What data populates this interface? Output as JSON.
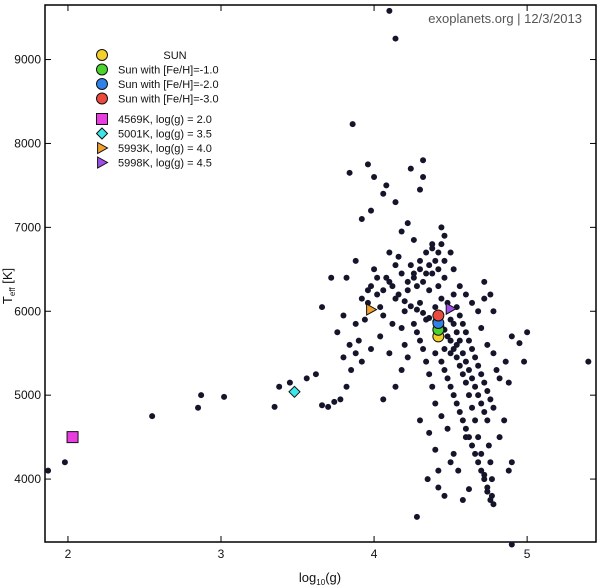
{
  "credit": "exoplanets.org | 12/3/2013",
  "colors": {
    "points": "#14142b",
    "sun": "#f5d02a",
    "feh_1": "#4cd42e",
    "feh_2": "#2f82e8",
    "feh_3": "#ec4a3c",
    "model_4569": "#e83ee0",
    "model_5001": "#3ee6e6",
    "model_5993": "#f2a02a",
    "model_5998": "#a04ee8"
  },
  "chart_data": {
    "type": "scatter",
    "xlabel": "log10(g)",
    "ylabel": "Teff [K]",
    "xlim": [
      1.85,
      5.45
    ],
    "ylim": [
      3250,
      9650
    ],
    "xticks": [
      2,
      3,
      4,
      5
    ],
    "yticks": [
      4000,
      5000,
      6000,
      7000,
      8000,
      9000
    ],
    "grid": false,
    "legend_position": "top-left",
    "legend": [
      {
        "label": "SUN",
        "marker": "circle",
        "color": "#f5d02a"
      },
      {
        "label": "Sun with [Fe/H]=-1.0",
        "marker": "circle",
        "color": "#4cd42e"
      },
      {
        "label": "Sun with [Fe/H]=-2.0",
        "marker": "circle",
        "color": "#2f82e8"
      },
      {
        "label": "Sun with [Fe/H]=-3.0",
        "marker": "circle",
        "color": "#ec4a3c"
      },
      {
        "label": "4569K, log(g) = 2.0",
        "marker": "square",
        "color": "#e83ee0"
      },
      {
        "label": "5001K, log(g) = 3.5",
        "marker": "diamond",
        "color": "#3ee6e6"
      },
      {
        "label": "5993K, log(g) = 4.0",
        "marker": "triangle-right",
        "color": "#f2a02a"
      },
      {
        "label": "5998K, log(g) = 4.5",
        "marker": "triangle-right",
        "color": "#a04ee8"
      }
    ],
    "highlighted": [
      {
        "name": "SUN",
        "marker": "circle",
        "color": "#f5d02a",
        "x": 4.42,
        "y": 5700
      },
      {
        "name": "Sun with [Fe/H]=-1.0",
        "marker": "circle",
        "color": "#4cd42e",
        "x": 4.42,
        "y": 5780
      },
      {
        "name": "Sun with [Fe/H]=-2.0",
        "marker": "circle",
        "color": "#2f82e8",
        "x": 4.42,
        "y": 5860
      },
      {
        "name": "Sun with [Fe/H]=-3.0",
        "marker": "circle",
        "color": "#ec4a3c",
        "x": 4.42,
        "y": 5950
      },
      {
        "name": "4569K, log(g) = 2.0",
        "marker": "square",
        "color": "#e83ee0",
        "x": 2.03,
        "y": 4500
      },
      {
        "name": "5001K, log(g) = 3.5",
        "marker": "diamond",
        "color": "#3ee6e6",
        "x": 3.48,
        "y": 5040
      },
      {
        "name": "5993K, log(g) = 4.0",
        "marker": "triangle-right",
        "color": "#f2a02a",
        "x": 3.98,
        "y": 6020
      },
      {
        "name": "5998K, log(g) = 4.5",
        "marker": "triangle-right",
        "color": "#a04ee8",
        "x": 4.5,
        "y": 6030
      }
    ],
    "series": [
      {
        "marker": "circle",
        "color": "#14142b",
        "points": [
          [
            1.87,
            4100
          ],
          [
            1.98,
            4200
          ],
          [
            2.55,
            4750
          ],
          [
            2.85,
            4850
          ],
          [
            2.87,
            5000
          ],
          [
            3.02,
            4980
          ],
          [
            3.35,
            4860
          ],
          [
            3.38,
            5100
          ],
          [
            3.45,
            5150
          ],
          [
            3.56,
            5200
          ],
          [
            3.62,
            5250
          ],
          [
            3.66,
            4880
          ],
          [
            3.7,
            4860
          ],
          [
            3.74,
            4920
          ],
          [
            3.78,
            4950
          ],
          [
            3.82,
            5100
          ],
          [
            3.85,
            5300
          ],
          [
            3.88,
            5500
          ],
          [
            3.9,
            5650
          ],
          [
            3.94,
            5900
          ],
          [
            3.96,
            6100
          ],
          [
            3.98,
            6300
          ],
          [
            4.0,
            6500
          ],
          [
            4.02,
            6200
          ],
          [
            4.04,
            6050
          ],
          [
            4.06,
            5950
          ],
          [
            4.08,
            6400
          ],
          [
            4.1,
            6700
          ],
          [
            4.12,
            5850
          ],
          [
            4.14,
            6150
          ],
          [
            4.16,
            6650
          ],
          [
            4.18,
            5800
          ],
          [
            4.2,
            6000
          ],
          [
            4.22,
            6350
          ],
          [
            4.24,
            6550
          ],
          [
            4.26,
            6450
          ],
          [
            4.28,
            6300
          ],
          [
            4.3,
            6100
          ],
          [
            4.32,
            6350
          ],
          [
            4.34,
            5900
          ],
          [
            4.36,
            6250
          ],
          [
            4.38,
            6450
          ],
          [
            4.4,
            6050
          ],
          [
            4.42,
            6300
          ],
          [
            4.44,
            6150
          ],
          [
            4.46,
            6400
          ],
          [
            4.48,
            6100
          ],
          [
            4.5,
            5900
          ],
          [
            4.52,
            5850
          ],
          [
            4.54,
            5750
          ],
          [
            4.56,
            5650
          ],
          [
            4.58,
            5500
          ],
          [
            4.6,
            5400
          ],
          [
            4.62,
            5300
          ],
          [
            4.64,
            5200
          ],
          [
            4.66,
            5100
          ],
          [
            4.68,
            5000
          ],
          [
            4.7,
            4900
          ],
          [
            4.72,
            4800
          ],
          [
            4.74,
            4700
          ],
          [
            4.75,
            4400
          ],
          [
            4.76,
            4200
          ],
          [
            4.77,
            4000
          ],
          [
            4.77,
            3800
          ],
          [
            4.78,
            3700
          ],
          [
            4.76,
            3750
          ],
          [
            4.74,
            3900
          ],
          [
            4.72,
            4050
          ],
          [
            4.7,
            4300
          ],
          [
            4.68,
            4500
          ],
          [
            4.66,
            4700
          ],
          [
            4.64,
            4850
          ],
          [
            4.62,
            5000
          ],
          [
            4.6,
            5150
          ],
          [
            4.58,
            5250
          ],
          [
            4.56,
            5350
          ],
          [
            4.54,
            5450
          ],
          [
            4.52,
            5550
          ],
          [
            4.5,
            5650
          ],
          [
            4.48,
            5700
          ],
          [
            4.46,
            5780
          ],
          [
            4.44,
            5820
          ],
          [
            4.4,
            5880
          ],
          [
            4.36,
            5920
          ],
          [
            4.32,
            5980
          ],
          [
            4.28,
            6020
          ],
          [
            4.24,
            6060
          ],
          [
            4.2,
            6120
          ],
          [
            4.16,
            6200
          ],
          [
            4.12,
            6300
          ],
          [
            4.3,
            6600
          ],
          [
            4.34,
            6700
          ],
          [
            4.38,
            6800
          ],
          [
            4.26,
            6850
          ],
          [
            4.18,
            6950
          ],
          [
            4.22,
            7050
          ],
          [
            4.14,
            7300
          ],
          [
            4.06,
            7400
          ],
          [
            4.3,
            7450
          ],
          [
            4.32,
            7600
          ],
          [
            4.24,
            7700
          ],
          [
            4.32,
            7800
          ],
          [
            4.08,
            7500
          ],
          [
            4.0,
            7600
          ],
          [
            3.98,
            7200
          ],
          [
            3.92,
            7100
          ],
          [
            3.96,
            7750
          ],
          [
            3.86,
            8230
          ],
          [
            3.84,
            7650
          ],
          [
            3.88,
            6600
          ],
          [
            3.82,
            6400
          ],
          [
            3.72,
            6400
          ],
          [
            3.76,
            5750
          ],
          [
            3.8,
            5950
          ],
          [
            3.66,
            6050
          ],
          [
            4.1,
            9580
          ],
          [
            4.14,
            9250
          ],
          [
            4.46,
            6600
          ],
          [
            4.44,
            7000
          ],
          [
            4.5,
            6700
          ],
          [
            4.52,
            6500
          ],
          [
            4.56,
            6300
          ],
          [
            4.6,
            6200
          ],
          [
            4.64,
            6100
          ],
          [
            4.68,
            6000
          ],
          [
            4.72,
            6350
          ],
          [
            4.76,
            6200
          ],
          [
            4.78,
            6000
          ],
          [
            4.72,
            6150
          ],
          [
            4.7,
            5800
          ],
          [
            4.74,
            5600
          ],
          [
            4.78,
            5500
          ],
          [
            4.8,
            5300
          ],
          [
            4.82,
            5200
          ],
          [
            4.86,
            5400
          ],
          [
            4.88,
            5150
          ],
          [
            4.9,
            5700
          ],
          [
            4.95,
            5620
          ],
          [
            5.0,
            5750
          ],
          [
            4.98,
            5400
          ],
          [
            5.4,
            5400
          ],
          [
            4.85,
            4700
          ],
          [
            4.82,
            4500
          ],
          [
            4.9,
            4200
          ],
          [
            4.88,
            4100
          ],
          [
            4.9,
            3220
          ],
          [
            4.28,
            3550
          ],
          [
            4.35,
            4000
          ],
          [
            4.42,
            3900
          ],
          [
            4.46,
            3800
          ],
          [
            4.5,
            4200
          ],
          [
            4.55,
            4100
          ],
          [
            4.58,
            3750
          ],
          [
            4.62,
            3880
          ],
          [
            4.6,
            4500
          ],
          [
            4.52,
            4300
          ],
          [
            4.48,
            4600
          ],
          [
            4.44,
            4750
          ],
          [
            4.4,
            4900
          ],
          [
            4.38,
            5100
          ],
          [
            4.36,
            5250
          ],
          [
            4.34,
            5400
          ],
          [
            4.32,
            5550
          ],
          [
            4.3,
            5650
          ],
          [
            4.28,
            5750
          ],
          [
            4.26,
            5850
          ],
          [
            4.44,
            5400
          ],
          [
            4.46,
            5300
          ],
          [
            4.48,
            5200
          ],
          [
            4.5,
            5100
          ],
          [
            4.52,
            5000
          ],
          [
            4.54,
            4900
          ],
          [
            4.56,
            4800
          ],
          [
            4.58,
            4700
          ],
          [
            4.6,
            4600
          ],
          [
            4.62,
            4500
          ],
          [
            4.64,
            4400
          ],
          [
            4.66,
            4300
          ],
          [
            4.68,
            4200
          ],
          [
            4.7,
            4100
          ],
          [
            4.72,
            4000
          ],
          [
            4.74,
            3850
          ],
          [
            4.52,
            6200
          ],
          [
            4.54,
            6050
          ],
          [
            4.56,
            5950
          ],
          [
            4.58,
            5850
          ],
          [
            4.6,
            5750
          ],
          [
            4.62,
            5650
          ],
          [
            4.64,
            5550
          ],
          [
            4.66,
            5450
          ],
          [
            4.68,
            5350
          ],
          [
            4.7,
            5250
          ],
          [
            4.72,
            5150
          ],
          [
            4.74,
            5050
          ],
          [
            4.76,
            4950
          ],
          [
            4.78,
            4850
          ],
          [
            4.2,
            5600
          ],
          [
            4.22,
            5450
          ],
          [
            4.18,
            5300
          ],
          [
            4.1,
            5500
          ],
          [
            4.04,
            5700
          ],
          [
            3.98,
            5550
          ],
          [
            3.92,
            5400
          ],
          [
            4.14,
            5100
          ],
          [
            4.06,
            4950
          ],
          [
            4.3,
            4700
          ],
          [
            4.36,
            4550
          ],
          [
            4.4,
            4350
          ],
          [
            4.42,
            4100
          ],
          [
            4.4,
            6600
          ],
          [
            4.42,
            6500
          ],
          [
            4.36,
            6550
          ],
          [
            4.34,
            6450
          ],
          [
            4.3,
            6500
          ],
          [
            4.26,
            6400
          ],
          [
            4.22,
            6250
          ],
          [
            4.18,
            6450
          ],
          [
            4.14,
            6550
          ],
          [
            4.1,
            6350
          ],
          [
            4.06,
            6250
          ],
          [
            4.02,
            6400
          ],
          [
            3.96,
            6250
          ],
          [
            3.92,
            6150
          ],
          [
            3.88,
            5850
          ],
          [
            3.84,
            5600
          ],
          [
            3.8,
            5450
          ],
          [
            4.42,
            6700
          ],
          [
            4.44,
            6800
          ],
          [
            4.38,
            6750
          ],
          [
            4.46,
            6900
          ],
          [
            4.4,
            5500
          ],
          [
            4.46,
            5550
          ],
          [
            4.5,
            5500
          ],
          [
            4.54,
            5600
          ]
        ]
      }
    ]
  }
}
